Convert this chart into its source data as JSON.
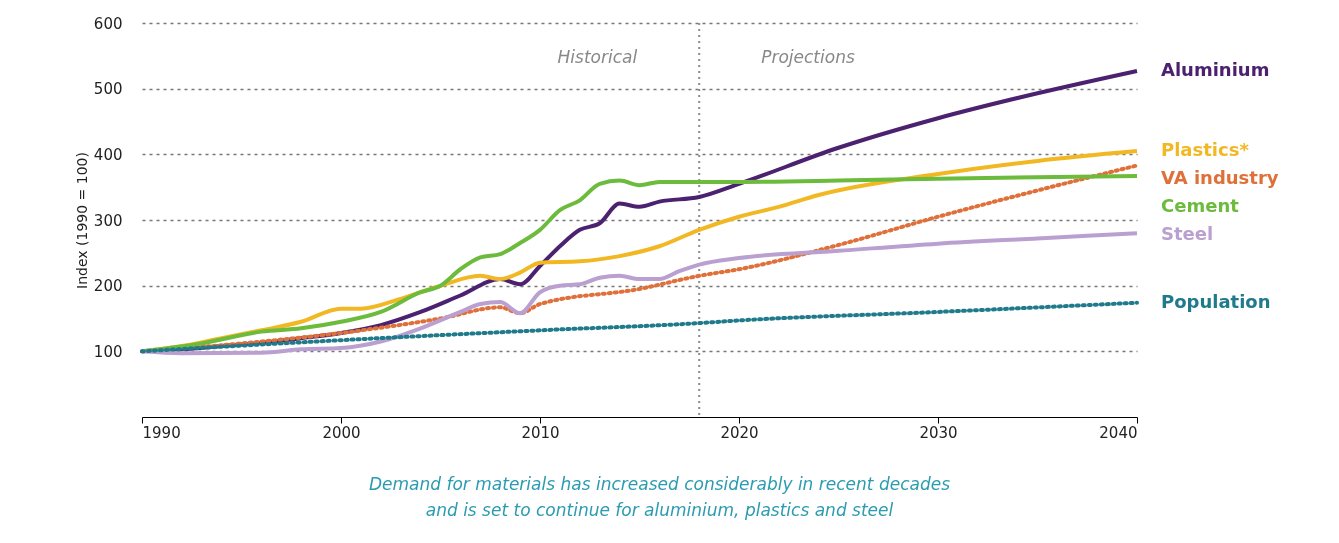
{
  "chart_data": {
    "type": "line",
    "ylabel": "Index (1990 = 100)",
    "xlim": [
      1990,
      2040
    ],
    "xticks": [
      1990,
      2000,
      2010,
      2020,
      2030,
      2040
    ],
    "ylim": [
      0,
      600
    ],
    "yticks": [
      100,
      200,
      300,
      400,
      500,
      600
    ],
    "grid": "y",
    "legend": false,
    "series": [
      {
        "name": "Aluminium",
        "color": "#4b2170",
        "line_style": "solid",
        "x": [
          1990,
          1992,
          1994,
          1996,
          1998,
          2000,
          2002,
          2004,
          2006,
          2008,
          2009,
          2010,
          2011,
          2012,
          2013,
          2014,
          2015,
          2016,
          2018,
          2020,
          2025,
          2030,
          2035,
          2040
        ],
        "values": [
          100,
          103,
          108,
          113,
          120,
          128,
          140,
          160,
          185,
          210,
          202,
          230,
          260,
          285,
          295,
          325,
          320,
          328,
          335,
          355,
          410,
          455,
          493,
          527
        ]
      },
      {
        "name": "Plastics*",
        "color": "#f2b824",
        "line_style": "solid",
        "x": [
          1990,
          1992,
          1994,
          1996,
          1998,
          2000,
          2001,
          2003,
          2005,
          2007,
          2008,
          2009,
          2010,
          2012,
          2014,
          2016,
          2018,
          2020,
          2022,
          2024,
          2030,
          2035,
          2040
        ],
        "values": [
          100,
          108,
          120,
          132,
          145,
          165,
          165,
          180,
          200,
          215,
          210,
          220,
          235,
          237,
          245,
          260,
          285,
          305,
          320,
          338,
          370,
          390,
          405
        ]
      },
      {
        "name": "VA industry",
        "color": "#e0703a",
        "line_style": "dotted",
        "x": [
          1990,
          1995,
          2000,
          2005,
          2008,
          2009,
          2010,
          2015,
          2018,
          2020,
          2025,
          2030,
          2035,
          2040
        ],
        "values": [
          100,
          112,
          128,
          150,
          167,
          158,
          172,
          195,
          215,
          225,
          262,
          305,
          345,
          383
        ]
      },
      {
        "name": "Cement",
        "color": "#6cbb3c",
        "line_style": "solid",
        "x": [
          1990,
          1993,
          1996,
          1998,
          2000,
          2002,
          2004,
          2005,
          2006,
          2007,
          2008,
          2009,
          2010,
          2011,
          2012,
          2013,
          2014,
          2015,
          2016,
          2018,
          2020,
          2025,
          2030,
          2040
        ],
        "values": [
          100,
          112,
          130,
          135,
          145,
          160,
          190,
          200,
          225,
          243,
          248,
          265,
          285,
          315,
          330,
          355,
          360,
          353,
          358,
          358,
          358,
          360,
          363,
          367
        ]
      },
      {
        "name": "Steel",
        "color": "#b9a0d0",
        "line_style": "solid",
        "x": [
          1990,
          1992,
          1996,
          1998,
          2000,
          2002,
          2004,
          2006,
          2007,
          2008,
          2009,
          2010,
          2011,
          2012,
          2013,
          2014,
          2015,
          2016,
          2017,
          2018,
          2020,
          2025,
          2030,
          2035,
          2040
        ],
        "values": [
          100,
          97,
          98,
          103,
          105,
          115,
          135,
          160,
          172,
          175,
          158,
          190,
          200,
          202,
          212,
          215,
          210,
          210,
          222,
          232,
          242,
          253,
          264,
          272,
          280
        ]
      },
      {
        "name": "Population",
        "color": "#1f7a8c",
        "line_style": "dotted",
        "x": [
          1990,
          2000,
          2010,
          2018,
          2020,
          2030,
          2040
        ],
        "values": [
          100,
          117,
          132,
          143,
          147,
          160,
          174
        ]
      }
    ],
    "ref_lines": [
      {
        "axis": "x",
        "value": 2018,
        "color": "#8c8c8c",
        "line_style": "dotted"
      }
    ],
    "annotations": [
      "Historical",
      "Projections",
      "Demand for materials has increased considerably in recent decades\nand is set to continue for aluminium, plastics and steel"
    ]
  }
}
